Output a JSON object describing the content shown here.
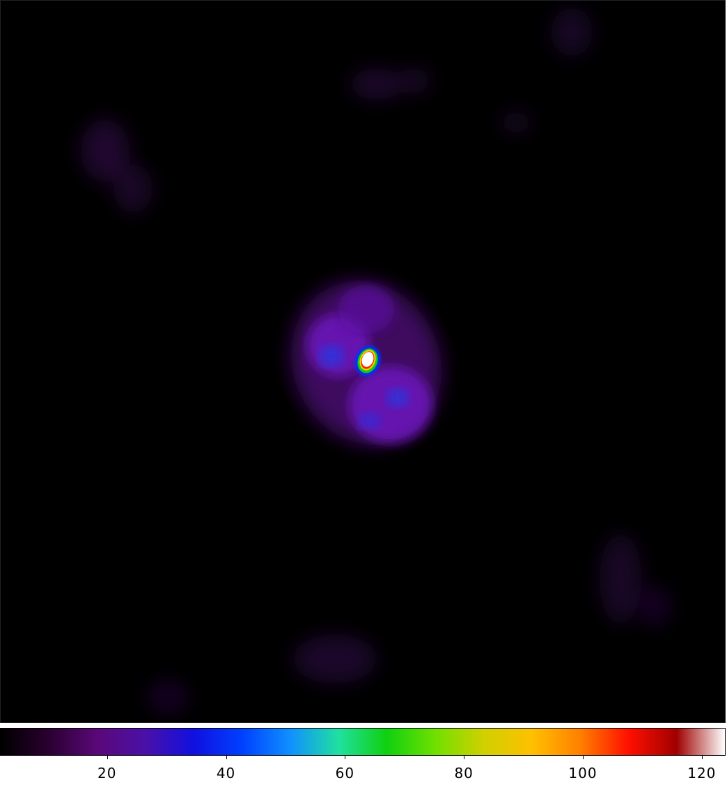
{
  "image": {
    "colormap_stops": [
      "#000000",
      "#2a0030",
      "#5a0878",
      "#4a10a8",
      "#1010e0",
      "#0040ff",
      "#1090ff",
      "#20e0a0",
      "#10d010",
      "#70e000",
      "#d0d000",
      "#ffc000",
      "#ff8000",
      "#ff1000",
      "#a00000",
      "#ffffff"
    ]
  },
  "colorbar": {
    "vmin": 2,
    "vmax": 124,
    "ticks": [
      {
        "value": 20,
        "label": "20"
      },
      {
        "value": 40,
        "label": "40"
      },
      {
        "value": 60,
        "label": "60"
      },
      {
        "value": 80,
        "label": "80"
      },
      {
        "value": 100,
        "label": "100"
      },
      {
        "value": 120,
        "label": "120"
      }
    ]
  }
}
